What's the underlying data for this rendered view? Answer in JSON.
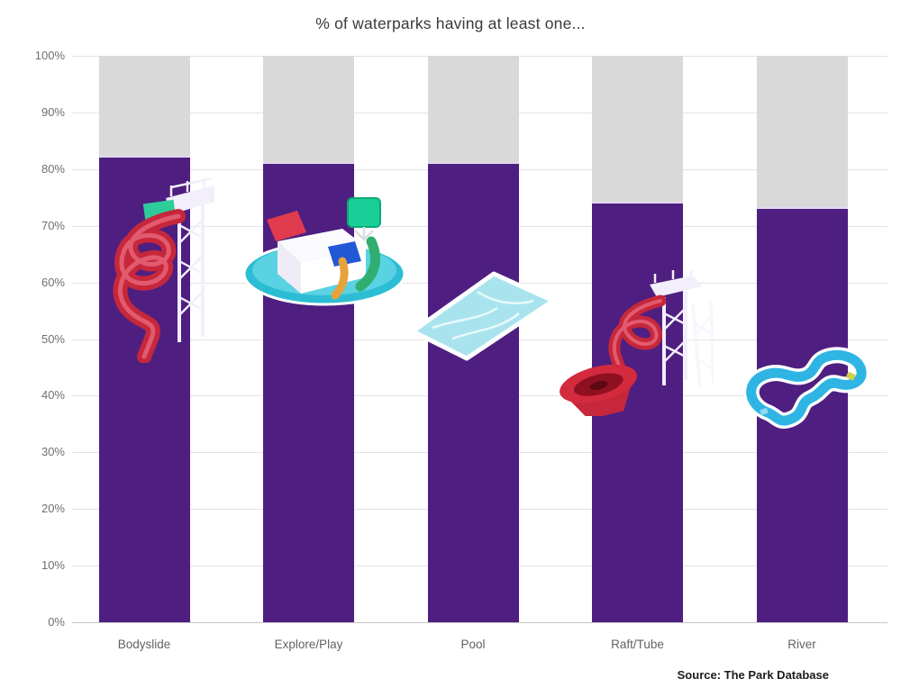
{
  "title": "% of waterparks having at least one...",
  "source": "Source: The Park Database",
  "chart_data": {
    "type": "bar",
    "title": "% of waterparks having at least one...",
    "xlabel": "",
    "ylabel": "",
    "categories": [
      "Bodyslide",
      "Explore/Play",
      "Pool",
      "Raft/Tube",
      "River"
    ],
    "values": [
      82,
      81,
      81,
      74,
      73
    ],
    "remainder_to": 100,
    "ylim": [
      0,
      100
    ],
    "ytick_step": 10,
    "ytick_labels": [
      "0%",
      "10%",
      "20%",
      "30%",
      "40%",
      "50%",
      "60%",
      "70%",
      "80%",
      "90%",
      "100%"
    ],
    "grid": true,
    "legend": "none",
    "bar_color": "#4e1f80",
    "remainder_color": "#d9d9d9",
    "icon_names": [
      "bodyslide-icon",
      "explore-play-icon",
      "pool-icon",
      "raft-tube-icon",
      "river-icon"
    ],
    "source": "Source: The Park Database"
  },
  "colors": {
    "bar_purple": "#4e1f80",
    "cap_gray": "#d9d9d9",
    "grid_gray": "#e3e3e3",
    "slide_red": "#c7273b",
    "water_cyan": "#2fb5e3",
    "pool_fill": "#a9e4ee",
    "platform_teal": "#2cbdd4",
    "bucket_green": "#17cf97"
  }
}
